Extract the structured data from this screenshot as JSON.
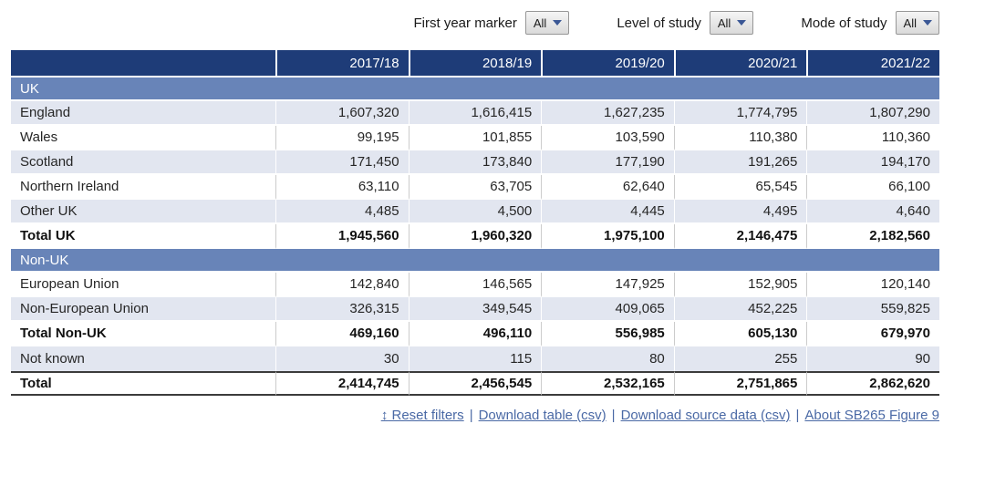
{
  "filters": [
    {
      "label": "First year marker",
      "value": "All"
    },
    {
      "label": "Level of study",
      "value": "All"
    },
    {
      "label": "Mode of study",
      "value": "All"
    }
  ],
  "table": {
    "columns": [
      "",
      "2017/18",
      "2018/19",
      "2019/20",
      "2020/21",
      "2021/22"
    ],
    "sections": [
      {
        "header": "UK",
        "rows": [
          {
            "label": "England",
            "values": [
              "1,607,320",
              "1,616,415",
              "1,627,235",
              "1,774,795",
              "1,807,290"
            ],
            "bold": false,
            "shaded": true
          },
          {
            "label": "Wales",
            "values": [
              "99,195",
              "101,855",
              "103,590",
              "110,380",
              "110,360"
            ],
            "bold": false,
            "shaded": false
          },
          {
            "label": "Scotland",
            "values": [
              "171,450",
              "173,840",
              "177,190",
              "191,265",
              "194,170"
            ],
            "bold": false,
            "shaded": true
          },
          {
            "label": "Northern Ireland",
            "values": [
              "63,110",
              "63,705",
              "62,640",
              "65,545",
              "66,100"
            ],
            "bold": false,
            "shaded": false
          },
          {
            "label": "Other UK",
            "values": [
              "4,485",
              "4,500",
              "4,445",
              "4,495",
              "4,640"
            ],
            "bold": false,
            "shaded": true
          },
          {
            "label": "Total UK",
            "values": [
              "1,945,560",
              "1,960,320",
              "1,975,100",
              "2,146,475",
              "2,182,560"
            ],
            "bold": true,
            "shaded": false
          }
        ]
      },
      {
        "header": "Non-UK",
        "rows": [
          {
            "label": "European Union",
            "values": [
              "142,840",
              "146,565",
              "147,925",
              "152,905",
              "120,140"
            ],
            "bold": false,
            "shaded": false
          },
          {
            "label": "Non-European Union",
            "values": [
              "326,315",
              "349,545",
              "409,065",
              "452,225",
              "559,825"
            ],
            "bold": false,
            "shaded": true
          },
          {
            "label": "Total Non-UK",
            "values": [
              "469,160",
              "496,110",
              "556,985",
              "605,130",
              "679,970"
            ],
            "bold": true,
            "shaded": false
          },
          {
            "label": "Not known",
            "values": [
              "30",
              "115",
              "80",
              "255",
              "90"
            ],
            "bold": false,
            "shaded": true
          }
        ]
      }
    ],
    "grand_total": {
      "label": "Total",
      "values": [
        "2,414,745",
        "2,456,545",
        "2,532,165",
        "2,751,865",
        "2,862,620"
      ],
      "bold": true,
      "shaded": false
    }
  },
  "footer": {
    "reset_icon_glyph": "↕",
    "links": [
      {
        "label": "Reset filters"
      },
      {
        "label": "Download table (csv)"
      },
      {
        "label": "Download source data (csv)"
      },
      {
        "label": "About SB265 Figure 9"
      }
    ],
    "separator": "|"
  },
  "colors": {
    "header_bg": "#1e3c78",
    "section_band_bg": "#6884b8",
    "shaded_row_bg": "#e2e6f0",
    "link_color": "#4a69a5",
    "dropdown_caret": "#3a5795",
    "dark_border": "#3c3c3c"
  }
}
